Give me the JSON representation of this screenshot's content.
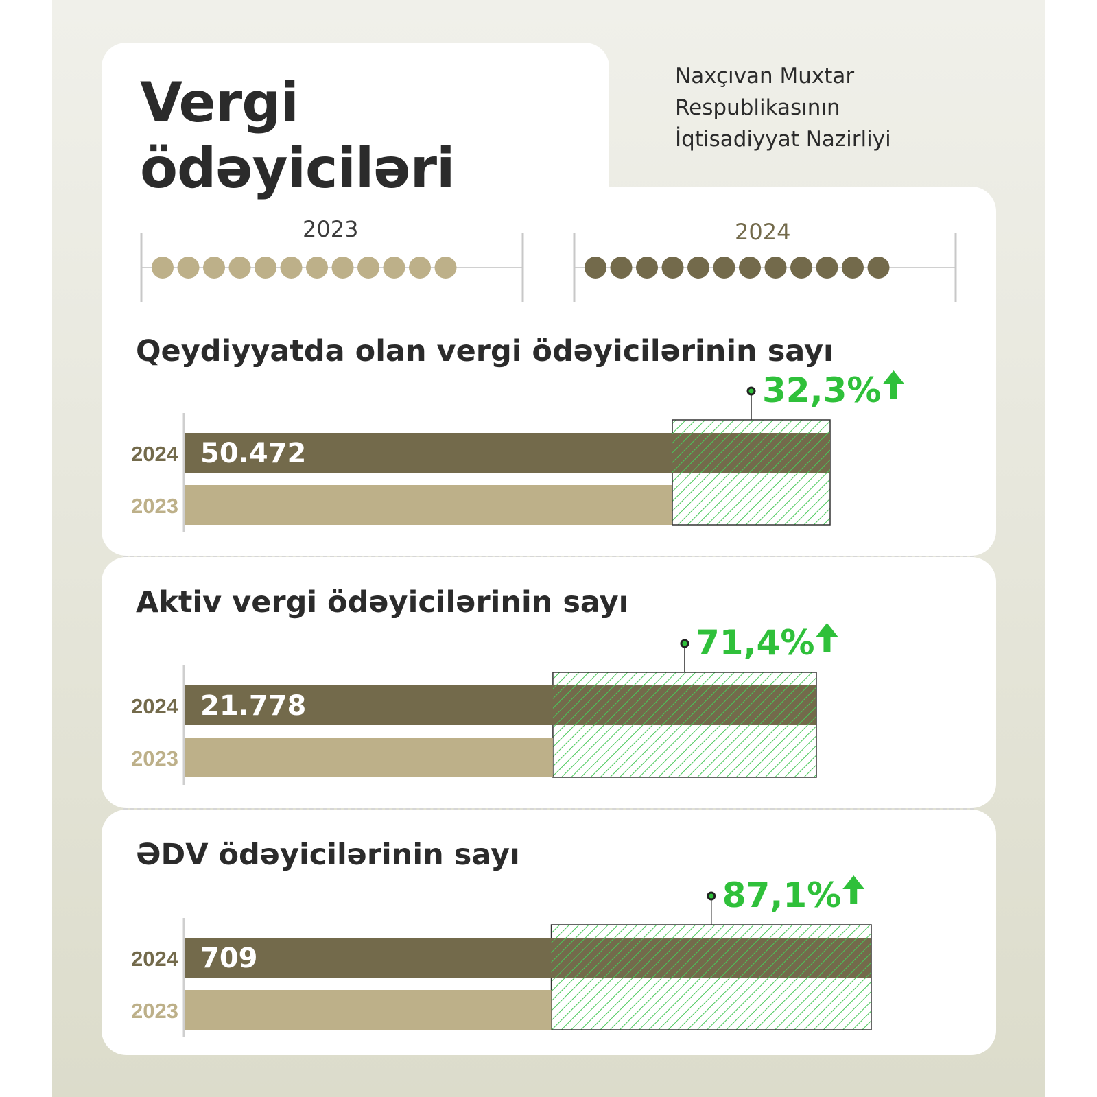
{
  "colors": {
    "bar_2024": "#736a4b",
    "bar_2023": "#bdb089",
    "growth": "#2fc03a",
    "text": "#2b2b2b"
  },
  "header": {
    "title_line1": "Vergi",
    "title_line2": "ödəyiciləri",
    "ministry_line1": "Naxçıvan Muxtar",
    "ministry_line2": "Respublikasının",
    "ministry_line3": "İqtisadiyyat Nazirliyi"
  },
  "timeline": {
    "year_2023": "2023",
    "year_2024": "2024",
    "months_per_year": 12
  },
  "chart_data": [
    {
      "type": "bar",
      "title": "Qeydiyyatda olan vergi ödəyicilərinin sayı",
      "categories": [
        "2024",
        "2023"
      ],
      "value_2024": 50472,
      "value_2024_label": "50.472",
      "growth_pct": 32.3,
      "growth_label": "32,3%"
    },
    {
      "type": "bar",
      "title": "Aktiv vergi ödəyicilərinin sayı",
      "categories": [
        "2024",
        "2023"
      ],
      "value_2024": 21778,
      "value_2024_label": "21.778",
      "growth_pct": 71.4,
      "growth_label": "71,4%"
    },
    {
      "type": "bar",
      "title": "ƏDV ödəyicilərinin sayı",
      "categories": [
        "2024",
        "2023"
      ],
      "value_2024": 709,
      "value_2024_label": "709",
      "growth_pct": 87.1,
      "growth_label": "87,1%"
    }
  ]
}
